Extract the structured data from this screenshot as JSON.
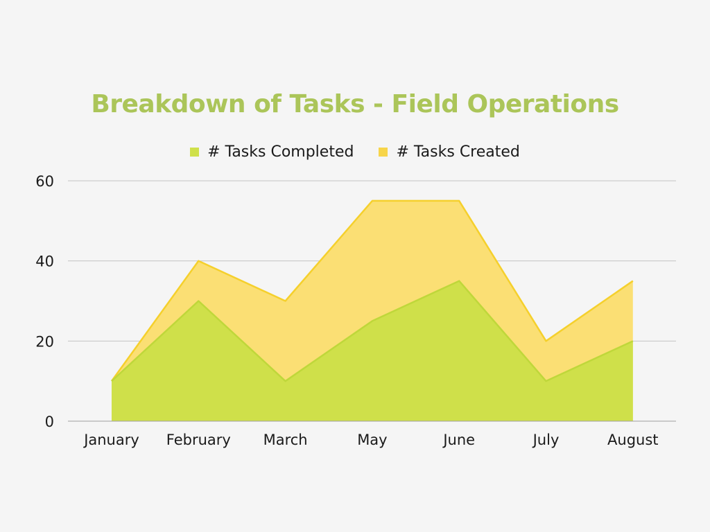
{
  "chart_data": {
    "type": "area",
    "title": "Breakdown of Tasks - Field Operations",
    "categories": [
      "January",
      "February",
      "March",
      "May",
      "June",
      "July",
      "August"
    ],
    "series": [
      {
        "name": "# Tasks Created",
        "values": [
          10,
          40,
          30,
          55,
          55,
          20,
          35
        ],
        "color": "#fbdf74",
        "line": "#f5d02c"
      },
      {
        "name": "# Tasks Completed",
        "values": [
          10,
          30,
          10,
          25,
          35,
          10,
          20
        ],
        "color": "#cfe04a",
        "line": "#bfd73a"
      }
    ],
    "yticks": [
      "0",
      "20",
      "40",
      "60"
    ],
    "ylim": [
      0,
      60
    ],
    "grid": true,
    "legend_position": "top",
    "title_color": "#abc559"
  }
}
